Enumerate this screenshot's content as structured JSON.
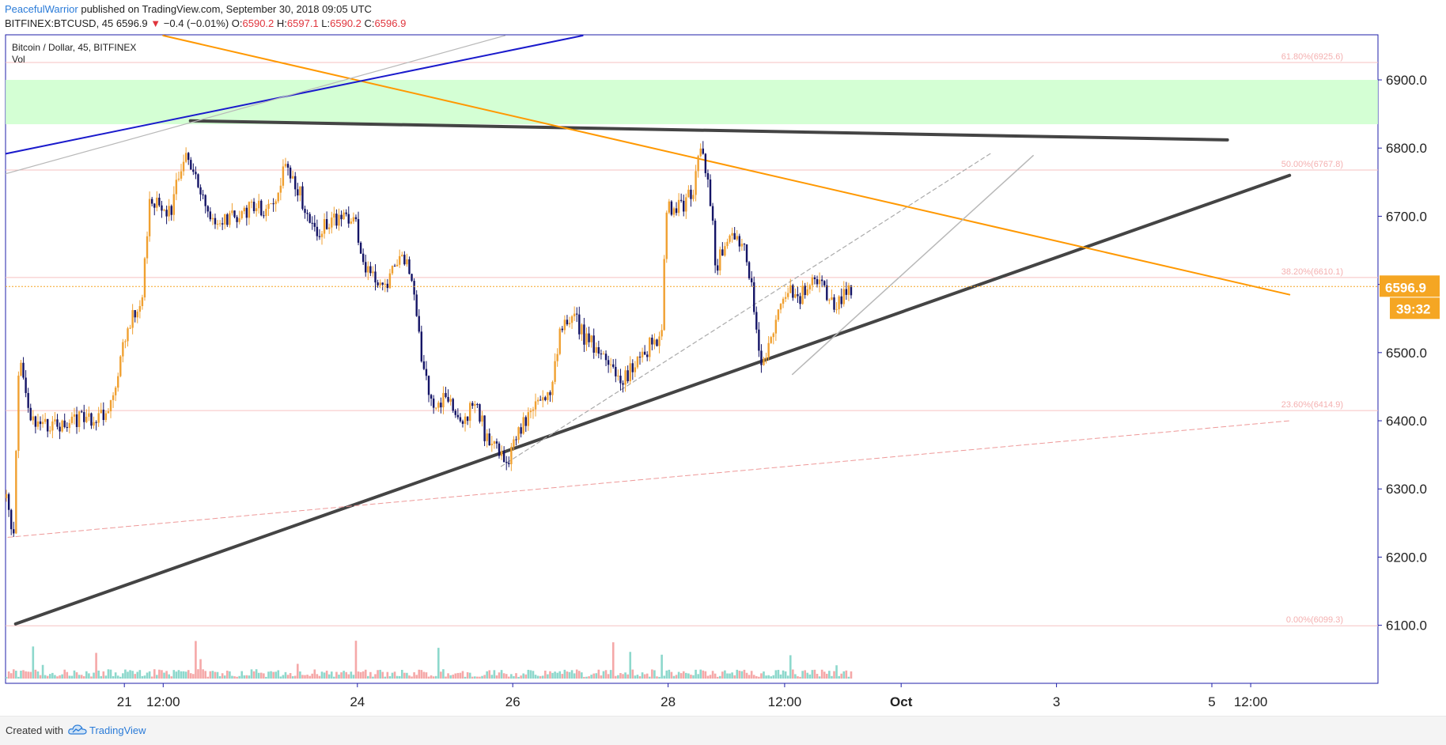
{
  "header": {
    "author": "PeacefulWarrior",
    "published": "published on TradingView.com, September 30, 2018 09:05 UTC",
    "symbol": "BITFINEX:BTCUSD, 45",
    "last": "6596.9",
    "change_arrow": "▼",
    "change": "−0.4 (−0.01%)",
    "o_label": "O:",
    "o_value": "6590.2",
    "h_label": "H:",
    "h_value": "6597.1",
    "l_label": "L:",
    "l_value": "6590.2",
    "c_label": "C:",
    "c_value": "6596.9"
  },
  "chart_data": {
    "type": "candlestick",
    "title": "Bitcoin / Dollar, 45, BITFINEX",
    "subtitle": "Vol",
    "ylim": [
      6015,
      6965
    ],
    "y_ticks": [
      {
        "value": 6100,
        "label": "6100.0"
      },
      {
        "value": 6200,
        "label": "6200.0"
      },
      {
        "value": 6300,
        "label": "6300.0"
      },
      {
        "value": 6400,
        "label": "6400.0"
      },
      {
        "value": 6500,
        "label": "6500.0"
      },
      {
        "value": 6600,
        "label": "6600.0"
      },
      {
        "value": 6700,
        "label": "6700.0"
      },
      {
        "value": 6800,
        "label": "6800.0"
      },
      {
        "value": 6900,
        "label": "6900.0"
      }
    ],
    "x_ticks": [
      {
        "label": "21",
        "day": 21.0
      },
      {
        "label": "12:00",
        "day": 21.5
      },
      {
        "label": "24",
        "day": 24.0
      },
      {
        "label": "26",
        "day": 26.0
      },
      {
        "label": "28",
        "day": 28.0
      },
      {
        "label": "12:00",
        "day": 29.5
      },
      {
        "label": "Oct",
        "day": 31.0,
        "bold": true
      },
      {
        "label": "3",
        "day": 33.0
      },
      {
        "label": "5",
        "day": 35.0
      },
      {
        "label": "12:00",
        "day": 35.5
      }
    ],
    "price_path": [
      [
        19.45,
        6280
      ],
      [
        19.52,
        6300
      ],
      [
        19.6,
        6210
      ],
      [
        19.68,
        6500
      ],
      [
        19.78,
        6420
      ],
      [
        19.9,
        6390
      ],
      [
        20.1,
        6395
      ],
      [
        20.3,
        6390
      ],
      [
        20.5,
        6410
      ],
      [
        20.7,
        6400
      ],
      [
        20.85,
        6420
      ],
      [
        21.0,
        6500
      ],
      [
        21.15,
        6560
      ],
      [
        21.25,
        6560
      ],
      [
        21.35,
        6720
      ],
      [
        21.5,
        6720
      ],
      [
        21.62,
        6700
      ],
      [
        21.72,
        6760
      ],
      [
        21.82,
        6800
      ],
      [
        21.95,
        6750
      ],
      [
        22.1,
        6710
      ],
      [
        22.25,
        6680
      ],
      [
        22.4,
        6700
      ],
      [
        22.6,
        6710
      ],
      [
        22.8,
        6710
      ],
      [
        22.95,
        6720
      ],
      [
        23.1,
        6770
      ],
      [
        23.3,
        6730
      ],
      [
        23.5,
        6680
      ],
      [
        23.7,
        6690
      ],
      [
        23.85,
        6710
      ],
      [
        24.0,
        6690
      ],
      [
        24.15,
        6620
      ],
      [
        24.35,
        6590
      ],
      [
        24.55,
        6640
      ],
      [
        24.72,
        6620
      ],
      [
        24.9,
        6460
      ],
      [
        25.05,
        6420
      ],
      [
        25.2,
        6440
      ],
      [
        25.4,
        6400
      ],
      [
        25.55,
        6430
      ],
      [
        25.7,
        6370
      ],
      [
        25.85,
        6360
      ],
      [
        25.95,
        6330
      ],
      [
        26.05,
        6380
      ],
      [
        26.2,
        6400
      ],
      [
        26.35,
        6420
      ],
      [
        26.5,
        6440
      ],
      [
        26.65,
        6530
      ],
      [
        26.8,
        6560
      ],
      [
        26.95,
        6520
      ],
      [
        27.1,
        6510
      ],
      [
        27.25,
        6490
      ],
      [
        27.4,
        6450
      ],
      [
        27.6,
        6480
      ],
      [
        27.8,
        6510
      ],
      [
        27.95,
        6530
      ],
      [
        28.0,
        6700
      ],
      [
        28.1,
        6720
      ],
      [
        28.2,
        6710
      ],
      [
        28.35,
        6740
      ],
      [
        28.45,
        6800
      ],
      [
        28.55,
        6760
      ],
      [
        28.65,
        6620
      ],
      [
        28.75,
        6660
      ],
      [
        28.85,
        6680
      ],
      [
        29.0,
        6660
      ],
      [
        29.1,
        6600
      ],
      [
        29.22,
        6480
      ],
      [
        29.3,
        6490
      ],
      [
        29.45,
        6560
      ],
      [
        29.55,
        6590
      ],
      [
        29.7,
        6580
      ],
      [
        29.85,
        6600
      ],
      [
        30.0,
        6600
      ],
      [
        30.1,
        6580
      ],
      [
        30.2,
        6570
      ],
      [
        30.3,
        6590
      ],
      [
        30.37,
        6597
      ]
    ],
    "last_price": {
      "value": 6596.9,
      "label": "6596.9",
      "countdown": "39:32"
    },
    "zone": {
      "from": 6835,
      "to": 6900,
      "color": "#ccffcc"
    },
    "fib_levels": [
      {
        "value": 6925.6,
        "label": "61.80%(6925.6)"
      },
      {
        "value": 6767.8,
        "label": "50.00%(6767.8)"
      },
      {
        "value": 6610.1,
        "label": "38.20%(6610.1)"
      },
      {
        "value": 6414.9,
        "label": "23.60%(6414.9)"
      },
      {
        "value": 6099.3,
        "label": "0.00%(6099.3)"
      }
    ],
    "trendlines": [
      {
        "name": "support-trendline",
        "color": "#444444",
        "width": 4,
        "p1": [
          19.6,
          6102
        ],
        "p2": [
          36.0,
          6760
        ]
      },
      {
        "name": "resistance-trendline",
        "color": "#444444",
        "width": 4,
        "p1": [
          21.85,
          6840
        ],
        "p2": [
          35.2,
          6812
        ]
      },
      {
        "name": "orange-trendline",
        "color": "#ff9800",
        "width": 2,
        "p1": [
          21.5,
          6965
        ],
        "p2": [
          36.0,
          6585
        ]
      },
      {
        "name": "blue-trendline",
        "color": "#1a1acc",
        "width": 2,
        "p1": [
          19.4,
          6790
        ],
        "p2": [
          26.9,
          6965
        ]
      },
      {
        "name": "grey-channel-line",
        "color": "#b8b8b8",
        "width": 1.2,
        "p1": [
          19.4,
          6760
        ],
        "p2": [
          25.9,
          6965
        ]
      },
      {
        "name": "grey-dashed-channel",
        "color": "#aaaaaa",
        "width": 1.2,
        "dash": "5,4",
        "p1": [
          25.85,
          6333
        ],
        "p2": [
          32.15,
          6792
        ]
      },
      {
        "name": "grey-trend-line",
        "color": "#b8b8b8",
        "width": 1.5,
        "p1": [
          29.6,
          6468
        ],
        "p2": [
          32.7,
          6789
        ]
      },
      {
        "name": "red-dashed-trend",
        "color": "#ee9999",
        "width": 1,
        "dash": "6,4",
        "p1": [
          19.4,
          6228
        ],
        "p2": [
          36.0,
          6400
        ]
      }
    ],
    "colors": {
      "up": "#f0a030",
      "down": "#141466",
      "axis": "#1f1fa8",
      "vol_up": "#8dd8cc",
      "vol_down": "#f5a8a8"
    }
  },
  "footer": {
    "created": "Created with",
    "brand": "TradingView",
    "logo_icon": "tradingview-cloud-icon"
  }
}
